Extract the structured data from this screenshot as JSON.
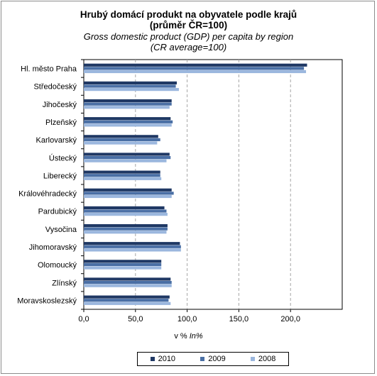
{
  "title": {
    "line1": "Hrubý domácí produkt na obyvatele podle krajů",
    "line2": "(průměr ČR=100)",
    "line3": "Gross domestic product (GDP) per capita by region",
    "line4": "(CR average=100)"
  },
  "xlabel": {
    "cs": "v %",
    "en": "In%"
  },
  "chart_data": {
    "type": "bar",
    "orientation": "horizontal",
    "categories": [
      "Hl. město Praha",
      "Středočeský",
      "Jihočeský",
      "Plzeňský",
      "Karlovarský",
      "Ústecký",
      "Liberecký",
      "Královéhradecký",
      "Pardubický",
      "Vysočina",
      "Jihomoravský",
      "Olomoucký",
      "Zlínský",
      "Moravskoslezský"
    ],
    "series": [
      {
        "name": "2010",
        "color": "#1f3864",
        "values": [
          216,
          90,
          85,
          84,
          72,
          83,
          74,
          85,
          78,
          81,
          93,
          75,
          84,
          83
        ]
      },
      {
        "name": "2009",
        "color": "#4a6fa5",
        "values": [
          213,
          89,
          85,
          86,
          74,
          84,
          74,
          87,
          80,
          81,
          94,
          75,
          85,
          82
        ]
      },
      {
        "name": "2008",
        "color": "#9bb7de",
        "values": [
          215,
          92,
          83,
          85,
          71,
          80,
          75,
          85,
          81,
          80,
          94,
          75,
          85,
          84
        ]
      }
    ],
    "xlim": [
      0,
      250
    ],
    "xticks": [
      0,
      50,
      100,
      150,
      200
    ],
    "xtick_labels": [
      "0,0",
      "50,0",
      "100,0",
      "150,0",
      "200,0"
    ],
    "grid": "vertical dashed",
    "legend": "bottom"
  }
}
